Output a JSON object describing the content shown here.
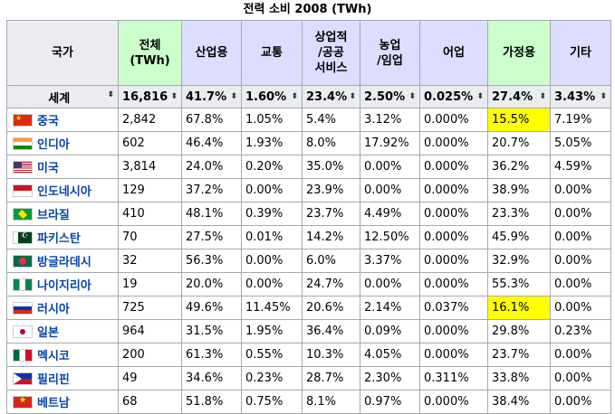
{
  "caption": "전력 소비 2008 (TWh)",
  "headers": {
    "country": "국가",
    "total": "전체\n(TWh)",
    "industry": "산업용",
    "transport": "교통",
    "commercial": "상업적\n/공공\n서비스",
    "agriculture": "농업\n/임업",
    "fishing": "어업",
    "residential": "가정용",
    "other": "기타"
  },
  "sort_icon": "⬍",
  "world": {
    "name": "세계",
    "values": [
      "16,816",
      "41.7%",
      "1.60%",
      "23.4%",
      "2.50%",
      "0.025%",
      "27.4%",
      "3.43%"
    ]
  },
  "rows": [
    {
      "flag": "cn",
      "name": "중국",
      "values": [
        "2,842",
        "67.8%",
        "1.05%",
        "5.4%",
        "3.12%",
        "0.000%",
        "15.5%",
        "7.19%"
      ],
      "highlight": 6
    },
    {
      "flag": "in",
      "name": "인디아",
      "values": [
        "602",
        "46.4%",
        "1.93%",
        "8.0%",
        "17.92%",
        "0.000%",
        "20.7%",
        "5.05%"
      ]
    },
    {
      "flag": "us",
      "name": "미국",
      "values": [
        "3,814",
        "24.0%",
        "0.20%",
        "35.0%",
        "0.00%",
        "0.000%",
        "36.2%",
        "4.59%"
      ]
    },
    {
      "flag": "id",
      "name": "인도네시아",
      "values": [
        "129",
        "37.2%",
        "0.00%",
        "23.9%",
        "0.00%",
        "0.000%",
        "38.9%",
        "0.00%"
      ]
    },
    {
      "flag": "br",
      "name": "브라질",
      "values": [
        "410",
        "48.1%",
        "0.39%",
        "23.7%",
        "4.49%",
        "0.000%",
        "23.3%",
        "0.00%"
      ]
    },
    {
      "flag": "pk",
      "name": "파키스탄",
      "values": [
        "70",
        "27.5%",
        "0.01%",
        "14.2%",
        "12.50%",
        "0.000%",
        "45.9%",
        "0.00%"
      ]
    },
    {
      "flag": "bd",
      "name": "방글라데시",
      "values": [
        "32",
        "56.3%",
        "0.00%",
        "6.0%",
        "3.37%",
        "0.000%",
        "32.9%",
        "0.00%"
      ]
    },
    {
      "flag": "ng",
      "name": "나이지리아",
      "values": [
        "19",
        "20.0%",
        "0.00%",
        "24.7%",
        "0.00%",
        "0.000%",
        "55.3%",
        "0.00%"
      ]
    },
    {
      "flag": "ru",
      "name": "러시아",
      "values": [
        "725",
        "49.6%",
        "11.45%",
        "20.6%",
        "2.14%",
        "0.037%",
        "16.1%",
        "0.00%"
      ],
      "highlight": 6
    },
    {
      "flag": "jp",
      "name": "일본",
      "values": [
        "964",
        "31.5%",
        "1.95%",
        "36.4%",
        "0.09%",
        "0.000%",
        "29.8%",
        "0.23%"
      ]
    },
    {
      "flag": "mx",
      "name": "멕시코",
      "values": [
        "200",
        "61.3%",
        "0.55%",
        "10.3%",
        "4.05%",
        "0.000%",
        "23.7%",
        "0.00%"
      ]
    },
    {
      "flag": "ph",
      "name": "필리핀",
      "values": [
        "49",
        "34.6%",
        "0.23%",
        "28.7%",
        "2.30%",
        "0.311%",
        "33.8%",
        "0.00%"
      ]
    },
    {
      "flag": "vn",
      "name": "베트남",
      "values": [
        "68",
        "51.8%",
        "0.75%",
        "8.1%",
        "0.97%",
        "0.000%",
        "38.4%",
        "0.00%"
      ]
    }
  ]
}
